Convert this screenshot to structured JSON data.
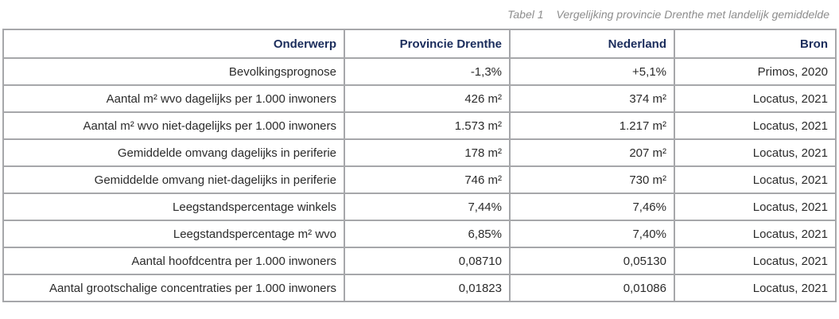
{
  "caption": {
    "number": "Tabel 1",
    "text": "Vergelijking provincie Drenthe met landelijk gemiddelde"
  },
  "table": {
    "headers": [
      "Onderwerp",
      "Provincie Drenthe",
      "Nederland",
      "Bron"
    ],
    "rows": [
      [
        "Bevolkingsprognose",
        "-1,3%",
        "+5,1%",
        "Primos, 2020"
      ],
      [
        "Aantal m² wvo dagelijks per 1.000 inwoners",
        "426 m²",
        "374 m²",
        "Locatus, 2021"
      ],
      [
        "Aantal m² wvo niet-dagelijks per 1.000 inwoners",
        "1.573 m²",
        "1.217 m²",
        "Locatus, 2021"
      ],
      [
        "Gemiddelde omvang dagelijks in periferie",
        "178 m²",
        "207 m²",
        "Locatus, 2021"
      ],
      [
        "Gemiddelde omvang niet-dagelijks in periferie",
        "746 m²",
        "730 m²",
        "Locatus, 2021"
      ],
      [
        "Leegstandspercentage winkels",
        "7,44%",
        "7,46%",
        "Locatus, 2021"
      ],
      [
        "Leegstandspercentage m² wvo",
        "6,85%",
        "7,40%",
        "Locatus, 2021"
      ],
      [
        "Aantal hoofdcentra per 1.000 inwoners",
        "0,08710",
        "0,05130",
        "Locatus, 2021"
      ],
      [
        "Aantal grootschalige concentraties per 1.000 inwoners",
        "0,01823",
        "0,01086",
        "Locatus, 2021"
      ]
    ]
  },
  "colors": {
    "header_text": "#1b2d5c",
    "border": "#a6a7aa",
    "caption_text": "#8d8d8d"
  }
}
